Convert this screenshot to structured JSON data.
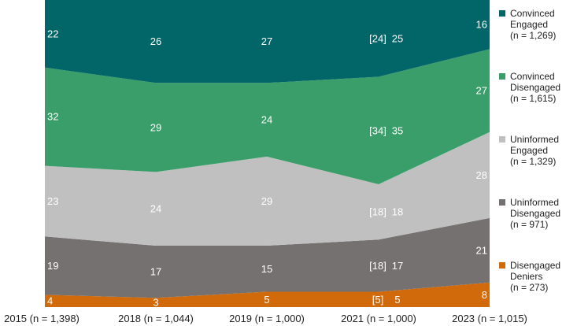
{
  "chart_data": {
    "type": "area",
    "stacked": true,
    "percent": true,
    "ylim": [
      0,
      100
    ],
    "categories": [
      "2015 (n = 1,398)",
      "2018 (n = 1,044)",
      "2019 (n = 1,000)",
      "2021 (n = 1,000)",
      "2023 (n = 1,015)"
    ],
    "series": [
      {
        "name": "Disengaged Deniers",
        "legend": [
          "Disengaged",
          "Deniers",
          "(n = 273)"
        ],
        "color": "#d06a0a",
        "text_color": "#ffffff",
        "values": [
          4,
          3,
          5,
          5,
          8
        ],
        "bracketed_2021": "[5]"
      },
      {
        "name": "Uninformed Disengaged",
        "legend": [
          "Uninformed",
          "Disengaged",
          "(n = 971)"
        ],
        "color": "#767171",
        "text_color": "#ffffff",
        "values": [
          19,
          17,
          15,
          17,
          21
        ],
        "bracketed_2021": "[18]"
      },
      {
        "name": "Uninformed Engaged",
        "legend": [
          "Uninformed",
          "Engaged",
          "(n = 1,329)"
        ],
        "color": "#c0c0c0",
        "text_color": "#ffffff",
        "values": [
          23,
          24,
          29,
          18,
          28
        ],
        "bracketed_2021": "[18]"
      },
      {
        "name": "Convinced Disengaged",
        "legend": [
          "Convinced",
          "Disengaged",
          "(n = 1,615)"
        ],
        "color": "#3a9e6a",
        "text_color": "#ffffff",
        "values": [
          32,
          29,
          24,
          35,
          27
        ],
        "bracketed_2021": "[34]"
      },
      {
        "name": "Convinced Engaged",
        "legend": [
          "Convinced",
          "Engaged",
          "(n = 1,269)"
        ],
        "color": "#026567",
        "text_color": "#ffffff",
        "values": [
          22,
          26,
          27,
          25,
          16
        ],
        "bracketed_2021": "[24]"
      }
    ],
    "legend_placement": "right",
    "grid": false
  }
}
